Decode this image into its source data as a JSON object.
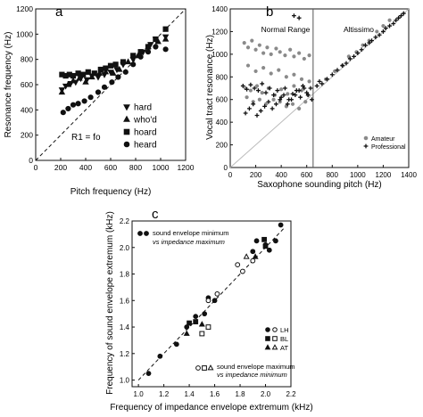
{
  "figure": {
    "labels": {
      "a": "a",
      "b": "b",
      "c": "c"
    }
  },
  "chart_data": [
    {
      "id": "a",
      "type": "scatter",
      "panel_label": "a",
      "xlabel": "Pitch frequency (Hz)",
      "ylabel": "Resonance frequency (Hz)",
      "xlim": [
        0,
        1200
      ],
      "ylim": [
        0,
        1200
      ],
      "xticks": [
        0,
        200,
        400,
        600,
        800,
        1000,
        1200
      ],
      "yticks": [
        0,
        200,
        400,
        600,
        800,
        1000,
        1200
      ],
      "annotation": "R1 = fo",
      "reference_line": "y = x",
      "legend_position": "bottom-right",
      "series": [
        {
          "name": "hard",
          "marker": "triangle-down",
          "x": [
            210,
            240,
            280,
            320,
            360,
            410,
            450,
            500,
            550,
            600,
            650,
            700,
            780,
            860,
            920,
            960,
            1040
          ],
          "y": [
            560,
            590,
            610,
            620,
            650,
            640,
            670,
            660,
            680,
            700,
            720,
            760,
            800,
            860,
            920,
            960,
            980
          ]
        },
        {
          "name": "who'd",
          "marker": "triangle-up",
          "x": [
            210,
            260,
            300,
            350,
            400,
            450,
            510,
            560,
            620,
            670,
            740,
            820,
            900,
            980,
            1040
          ],
          "y": [
            540,
            600,
            630,
            650,
            620,
            660,
            690,
            700,
            690,
            720,
            780,
            830,
            900,
            940,
            960
          ]
        },
        {
          "name": "hoard",
          "marker": "square",
          "x": [
            210,
            240,
            270,
            300,
            340,
            380,
            420,
            470,
            520,
            560,
            600,
            640,
            700,
            780,
            840,
            900,
            960,
            1040
          ],
          "y": [
            680,
            670,
            680,
            670,
            690,
            680,
            700,
            690,
            720,
            730,
            750,
            760,
            780,
            830,
            860,
            900,
            960,
            1040
          ]
        },
        {
          "name": "heard",
          "marker": "circle",
          "x": [
            220,
            260,
            300,
            340,
            390,
            440,
            500,
            550,
            610,
            660,
            720,
            780,
            840,
            900,
            960,
            1040
          ],
          "y": [
            380,
            410,
            440,
            450,
            470,
            500,
            540,
            580,
            620,
            660,
            700,
            760,
            820,
            860,
            900,
            880
          ]
        }
      ]
    },
    {
      "id": "b",
      "type": "scatter",
      "panel_label": "b",
      "xlabel": "Saxophone sounding pitch (Hz)",
      "ylabel": "Vocal tract resonance (Hz)",
      "xlim": [
        0,
        1400
      ],
      "ylim": [
        0,
        1400
      ],
      "xticks": [
        0,
        200,
        400,
        600,
        800,
        1000,
        1200,
        1400
      ],
      "yticks": [
        0,
        200,
        400,
        600,
        800,
        1000,
        1200,
        1400
      ],
      "region_labels": [
        "Normal Range",
        "Altissimo"
      ],
      "divider_x": 650,
      "reference_line": "y = x",
      "legend_position": "bottom-right",
      "series": [
        {
          "name": "Amateur",
          "marker": "dot",
          "color": "#8a8a8a",
          "x": [
            110,
            140,
            170,
            200,
            230,
            260,
            290,
            320,
            360,
            390,
            430,
            470,
            500,
            540,
            580,
            620,
            120,
            160,
            210,
            250,
            300,
            350,
            400,
            450,
            500,
            560,
            610,
            130,
            180,
            230,
            280,
            340,
            390,
            440,
            490,
            540,
            590,
            140,
            200,
            260,
            320,
            380,
            440,
            500,
            560,
            620,
            750,
            820,
            880,
            930,
            990,
            1040,
            1090,
            1150,
            1200,
            1250
          ],
          "y": [
            1100,
            1060,
            1120,
            1040,
            1080,
            1010,
            1060,
            1000,
            1050,
            1020,
            990,
            1040,
            980,
            1010,
            960,
            990,
            700,
            680,
            720,
            660,
            700,
            640,
            690,
            650,
            720,
            680,
            640,
            620,
            580,
            600,
            560,
            600,
            580,
            540,
            560,
            520,
            580,
            900,
            850,
            880,
            830,
            860,
            800,
            820,
            780,
            760,
            780,
            850,
            900,
            980,
            1020,
            1080,
            1120,
            1200,
            1250,
            1300
          ]
        },
        {
          "name": "Professional",
          "marker": "plus",
          "color": "#111111",
          "x": [
            100,
            130,
            160,
            190,
            220,
            250,
            280,
            310,
            340,
            370,
            400,
            430,
            460,
            490,
            520,
            550,
            580,
            610,
            640,
            120,
            150,
            180,
            210,
            240,
            270,
            300,
            330,
            360,
            390,
            420,
            450,
            480,
            510,
            540,
            570,
            600,
            630,
            500,
            540,
            680,
            700,
            720,
            760,
            800,
            840,
            880,
            910,
            940,
            970,
            1000,
            1030,
            1060,
            1090,
            1110,
            1140,
            1170,
            1200,
            1220,
            1250,
            1280,
            1300,
            1320,
            1340,
            1360
          ],
          "y": [
            720,
            690,
            730,
            700,
            680,
            740,
            660,
            700,
            640,
            680,
            620,
            700,
            600,
            650,
            680,
            620,
            700,
            640,
            600,
            480,
            520,
            560,
            460,
            500,
            540,
            580,
            520,
            560,
            600,
            640,
            560,
            600,
            640,
            680,
            720,
            660,
            700,
            1340,
            1320,
            720,
            760,
            740,
            780,
            820,
            860,
            900,
            920,
            960,
            980,
            1010,
            1040,
            1080,
            1100,
            1120,
            1150,
            1170,
            1200,
            1230,
            1250,
            1270,
            1300,
            1320,
            1340,
            1360
          ]
        }
      ]
    },
    {
      "id": "c",
      "type": "scatter",
      "panel_label": "c",
      "xlabel": "Frequency of impedance envelope extremum (kHz)",
      "ylabel": "Frequency of sound envelope extremum (kHz)",
      "xlim": [
        0.95,
        2.2
      ],
      "ylim": [
        0.95,
        2.2
      ],
      "xticks": [
        1.0,
        1.2,
        1.4,
        1.6,
        1.8,
        2.0,
        2.2
      ],
      "yticks": [
        1.0,
        1.2,
        1.4,
        1.6,
        1.8,
        2.0,
        2.2
      ],
      "xtick_labels": [
        "1.0",
        "1.2",
        "1.4",
        "1.6",
        "1.8",
        "2.0",
        "2.2"
      ],
      "ytick_labels": [
        "1.0",
        "1.2",
        "1.4",
        "1.6",
        "1.8",
        "2.0",
        "2.2"
      ],
      "reference_line": "y = x",
      "annotation_top_1": "sound envelope minimum",
      "annotation_top_2": "vs impedance maximum",
      "annotation_bottom_1": "sound envelope maximum",
      "annotation_bottom_2": "vs impedance minimum",
      "legend_position": "right",
      "series": [
        {
          "name": "LH",
          "marker": "circle",
          "filled_x": [
            1.08,
            1.17,
            1.3,
            1.38,
            1.45,
            1.52,
            1.55,
            1.6,
            1.9,
            1.93,
            2.0,
            2.03,
            2.08,
            2.12
          ],
          "filled_y": [
            1.05,
            1.18,
            1.27,
            1.4,
            1.48,
            1.5,
            1.62,
            1.6,
            1.97,
            2.05,
            2.02,
            1.98,
            2.05,
            2.17
          ],
          "open_x": [
            1.55,
            1.62,
            1.78,
            1.82,
            1.9
          ],
          "open_y": [
            1.6,
            1.65,
            1.87,
            1.82,
            1.9
          ]
        },
        {
          "name": "BL",
          "marker": "square",
          "filled_x": [
            1.4,
            1.45,
            1.99,
            2.0
          ],
          "filled_y": [
            1.43,
            1.44,
            2.06,
            2.01
          ],
          "open_x": [
            1.5,
            1.55
          ],
          "open_y": [
            1.35,
            1.4
          ]
        },
        {
          "name": "AT",
          "marker": "triangle",
          "filled_x": [
            1.38,
            1.5,
            1.92
          ],
          "filled_y": [
            1.35,
            1.42,
            1.93
          ],
          "open_x": [
            1.85
          ],
          "open_y": [
            1.93
          ]
        }
      ]
    }
  ]
}
